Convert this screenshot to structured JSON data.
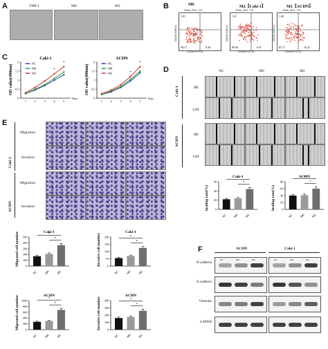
{
  "panels": {
    "A": {
      "letter": "A",
      "headers": [
        "THP-1",
        "M0",
        "M2"
      ]
    },
    "B": {
      "letter": "B",
      "titles": [
        "M0",
        "M2【Caki-1】",
        "M2【ACHN】"
      ],
      "subtitles": [
        "Tube_002 - P2",
        "Tube_002 - P2",
        "Tube_004 - P2"
      ],
      "quadrants": [
        [
          "98.17",
          "0.38",
          "1.01"
        ],
        [
          "89.90",
          "8.07",
          "1.01"
        ],
        [
          "81.71",
          "16.23",
          "1.40"
        ]
      ],
      "ylab": "CD163 V450-A",
      "xlab": "CD206 FITC-A"
    },
    "C": {
      "letter": "C",
      "chart_titles": [
        "Caki-1",
        "ACHN"
      ],
      "ylabel": "OD value(490nm)",
      "xlabel": "Days",
      "legend": [
        "NC",
        "M0",
        "M2"
      ],
      "colors": [
        "#1f3fa0",
        "#2a9a3a",
        "#d03030"
      ],
      "star": "*"
    },
    "D": {
      "letter": "D",
      "cols": [
        "NC",
        "M0",
        "M2"
      ],
      "groups": [
        "Caki-1",
        "ACHN"
      ],
      "times": [
        "0H",
        "12H",
        "0H",
        "12H"
      ],
      "bar_titles": [
        "Caki-1",
        "ACHN"
      ],
      "ylabel": "healing rate(%)"
    },
    "E": {
      "letter": "E",
      "groups": [
        "Caki-1",
        "ACHN"
      ],
      "rows": [
        "Migration",
        "Invasion",
        "Migration",
        "Invasion"
      ],
      "bar_titles": [
        "Caki-1",
        "Caki-1",
        "ACHN",
        "ACHN"
      ],
      "ylabels": [
        "Migrated cell number",
        "Invasive cell number",
        "Migrated cell number",
        "Invasive cell number"
      ]
    },
    "F": {
      "letter": "F",
      "groups": [
        "ACHN",
        "Caki-1"
      ],
      "lanes": [
        "NC",
        "M0",
        "M2"
      ],
      "proteins": [
        "N-cadherin",
        "E-cadherin",
        "Vimentin",
        "GAPDH"
      ]
    }
  },
  "chart_data": [
    {
      "type": "line",
      "title": "Caki-1",
      "xlabel": "Days",
      "ylabel": "OD value(490nm)",
      "x": [
        1,
        2,
        3,
        4,
        5
      ],
      "ylim": [
        0,
        2
      ],
      "series": [
        {
          "name": "NC",
          "values": [
            0.25,
            0.45,
            0.7,
            1.0,
            1.3
          ]
        },
        {
          "name": "M0",
          "values": [
            0.25,
            0.5,
            0.75,
            1.1,
            1.45
          ]
        },
        {
          "name": "M2",
          "values": [
            0.3,
            0.6,
            0.95,
            1.35,
            1.75
          ]
        }
      ]
    },
    {
      "type": "line",
      "title": "ACHN",
      "xlabel": "Days",
      "ylabel": "OD value(490nm)",
      "x": [
        1,
        2,
        3,
        4,
        5
      ],
      "ylim": [
        0,
        2
      ],
      "series": [
        {
          "name": "NC",
          "values": [
            0.2,
            0.35,
            0.6,
            0.95,
            1.4
          ]
        },
        {
          "name": "M0",
          "values": [
            0.2,
            0.4,
            0.65,
            1.05,
            1.5
          ]
        },
        {
          "name": "M2",
          "values": [
            0.25,
            0.45,
            0.75,
            1.2,
            1.75
          ]
        }
      ]
    },
    {
      "type": "bar",
      "title": "Caki-1",
      "ylabel": "healing rate(%)",
      "categories": [
        "NC",
        "M0",
        "M2"
      ],
      "values": [
        22,
        24,
        44
      ],
      "ylim": [
        0,
        60
      ],
      "yticks": [
        0,
        20,
        40,
        60
      ]
    },
    {
      "type": "bar",
      "title": "ACHN",
      "ylabel": "healing rate(%)",
      "categories": [
        "NC",
        "M0",
        "M2"
      ],
      "values": [
        40,
        41,
        60
      ],
      "ylim": [
        0,
        80
      ],
      "yticks": [
        0,
        20,
        40,
        60,
        80
      ]
    },
    {
      "type": "bar",
      "title": "Caki-1",
      "ylabel": "Migrated cell number",
      "categories": [
        "NC",
        "M0",
        "M2"
      ],
      "values": [
        170,
        210,
        360
      ],
      "ylim": [
        0,
        500
      ],
      "yticks": [
        0,
        100,
        200,
        300,
        400,
        500
      ]
    },
    {
      "type": "bar",
      "title": "Caki-1",
      "ylabel": "Invasive cell number",
      "categories": [
        "NC",
        "M0",
        "M2"
      ],
      "values": [
        55,
        70,
        125
      ],
      "ylim": [
        0,
        200
      ],
      "yticks": [
        0,
        50,
        100,
        150,
        200
      ]
    },
    {
      "type": "bar",
      "title": "ACHN",
      "ylabel": "Migrated cell number",
      "categories": [
        "NC",
        "M0",
        "M2"
      ],
      "values": [
        270,
        300,
        680
      ],
      "ylim": [
        0,
        1000
      ],
      "yticks": [
        0,
        200,
        400,
        600,
        800,
        1000
      ]
    },
    {
      "type": "bar",
      "title": "ACHN",
      "ylabel": "Invasive cell number",
      "categories": [
        "NC",
        "M0",
        "M2"
      ],
      "values": [
        160,
        175,
        260
      ],
      "ylim": [
        0,
        400
      ],
      "yticks": [
        0,
        100,
        200,
        300,
        400
      ]
    }
  ]
}
